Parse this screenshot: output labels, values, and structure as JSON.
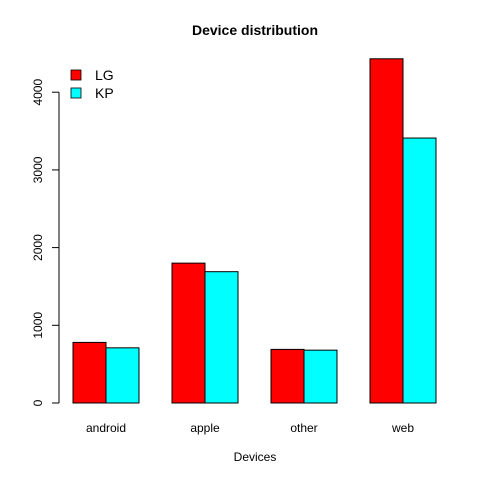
{
  "chart_data": {
    "type": "bar",
    "title": "Device distribution",
    "xlabel": "Devices",
    "ylabel": "",
    "categories": [
      "android",
      "apple",
      "other",
      "web"
    ],
    "series": [
      {
        "name": "LG",
        "color": "#ff0000",
        "values": [
          780,
          1800,
          690,
          4430
        ]
      },
      {
        "name": "KP",
        "color": "#00ffff",
        "values": [
          710,
          1690,
          680,
          3410
        ]
      }
    ],
    "ylim": [
      0,
      4500
    ],
    "yticks": [
      "0",
      "1000",
      "2000",
      "3000",
      "4000"
    ],
    "grid": false,
    "legend_position": "top-left"
  }
}
